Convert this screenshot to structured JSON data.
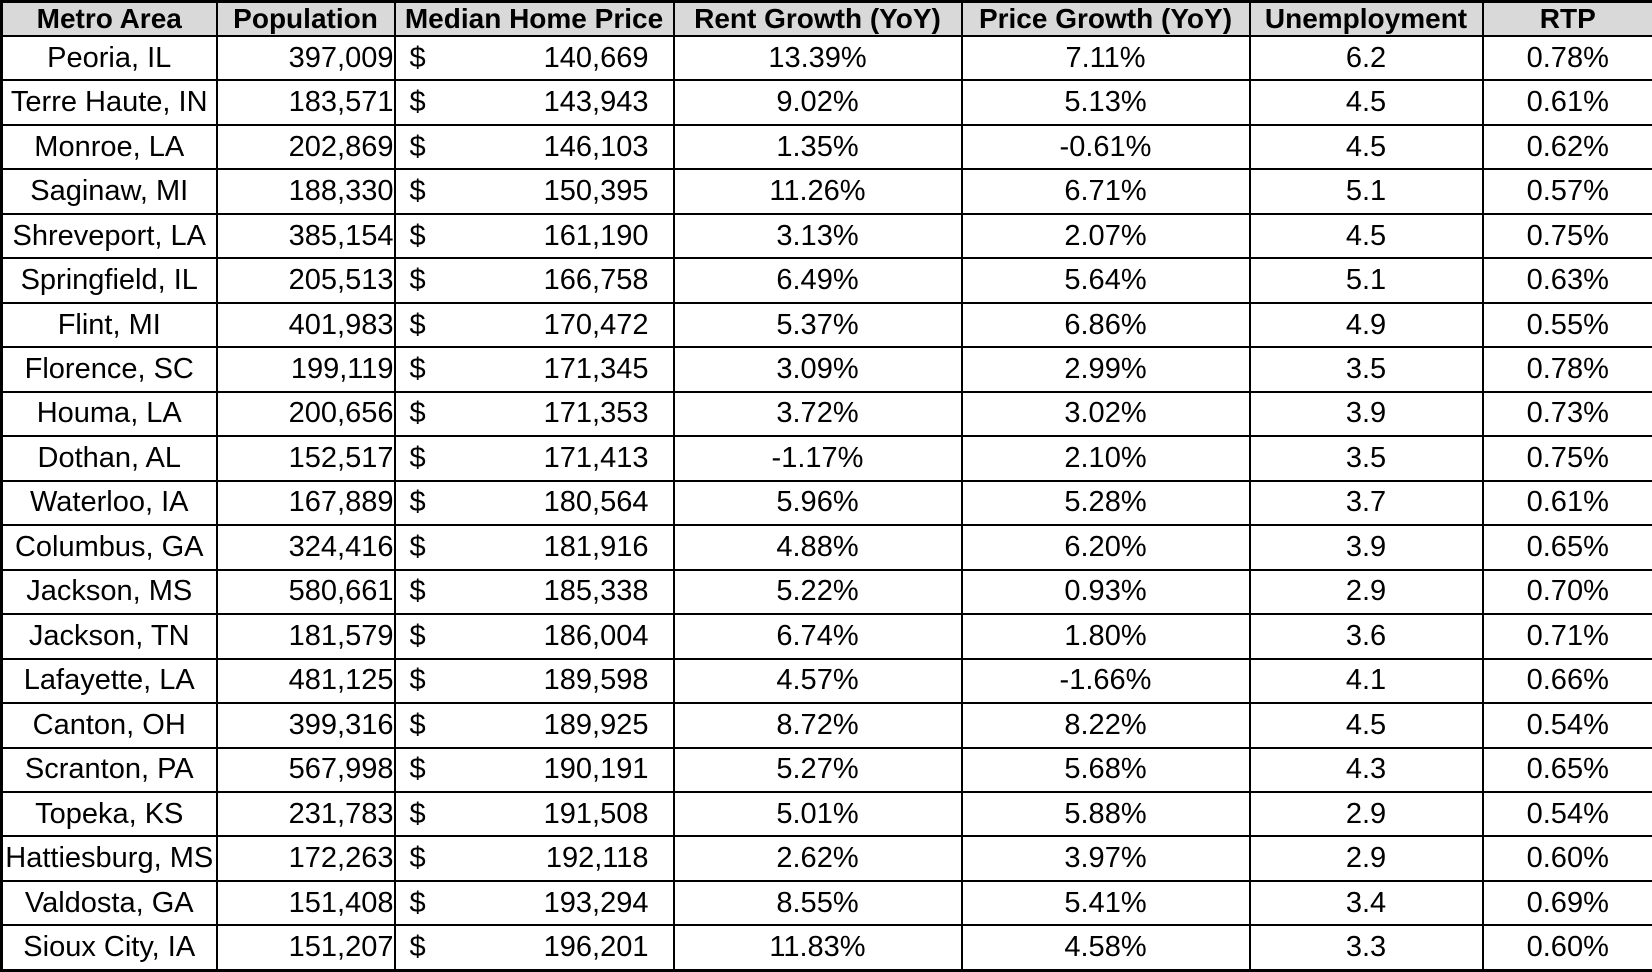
{
  "colors": {
    "header_bg": "#d9d9d9",
    "border": "#000000",
    "cell_bg": "#ffffff",
    "text": "#000000"
  },
  "chart_data": {
    "type": "table",
    "title": "",
    "columns": [
      {
        "key": "metro",
        "label": "Metro Area"
      },
      {
        "key": "population",
        "label": "Population"
      },
      {
        "key": "median_home_price",
        "label": "Median Home Price",
        "format": "accounting",
        "currency_symbol": "$"
      },
      {
        "key": "rent_growth",
        "label": "Rent Growth (YoY)"
      },
      {
        "key": "price_growth",
        "label": "Price Growth (YoY)"
      },
      {
        "key": "unemployment",
        "label": "Unemployment"
      },
      {
        "key": "rtp",
        "label": "RTP"
      }
    ],
    "rows": [
      [
        "Peoria, IL",
        "397,009",
        "140,669",
        "13.39%",
        "7.11%",
        "6.2",
        "0.78%"
      ],
      [
        "Terre Haute, IN",
        "183,571",
        "143,943",
        "9.02%",
        "5.13%",
        "4.5",
        "0.61%"
      ],
      [
        "Monroe, LA",
        "202,869",
        "146,103",
        "1.35%",
        "-0.61%",
        "4.5",
        "0.62%"
      ],
      [
        "Saginaw, MI",
        "188,330",
        "150,395",
        "11.26%",
        "6.71%",
        "5.1",
        "0.57%"
      ],
      [
        "Shreveport, LA",
        "385,154",
        "161,190",
        "3.13%",
        "2.07%",
        "4.5",
        "0.75%"
      ],
      [
        "Springfield, IL",
        "205,513",
        "166,758",
        "6.49%",
        "5.64%",
        "5.1",
        "0.63%"
      ],
      [
        "Flint, MI",
        "401,983",
        "170,472",
        "5.37%",
        "6.86%",
        "4.9",
        "0.55%"
      ],
      [
        "Florence, SC",
        "199,119",
        "171,345",
        "3.09%",
        "2.99%",
        "3.5",
        "0.78%"
      ],
      [
        "Houma, LA",
        "200,656",
        "171,353",
        "3.72%",
        "3.02%",
        "3.9",
        "0.73%"
      ],
      [
        "Dothan, AL",
        "152,517",
        "171,413",
        "-1.17%",
        "2.10%",
        "3.5",
        "0.75%"
      ],
      [
        "Waterloo, IA",
        "167,889",
        "180,564",
        "5.96%",
        "5.28%",
        "3.7",
        "0.61%"
      ],
      [
        "Columbus, GA",
        "324,416",
        "181,916",
        "4.88%",
        "6.20%",
        "3.9",
        "0.65%"
      ],
      [
        "Jackson, MS",
        "580,661",
        "185,338",
        "5.22%",
        "0.93%",
        "2.9",
        "0.70%"
      ],
      [
        "Jackson, TN",
        "181,579",
        "186,004",
        "6.74%",
        "1.80%",
        "3.6",
        "0.71%"
      ],
      [
        "Lafayette, LA",
        "481,125",
        "189,598",
        "4.57%",
        "-1.66%",
        "4.1",
        "0.66%"
      ],
      [
        "Canton, OH",
        "399,316",
        "189,925",
        "8.72%",
        "8.22%",
        "4.5",
        "0.54%"
      ],
      [
        "Scranton, PA",
        "567,998",
        "190,191",
        "5.27%",
        "5.68%",
        "4.3",
        "0.65%"
      ],
      [
        "Topeka, KS",
        "231,783",
        "191,508",
        "5.01%",
        "5.88%",
        "2.9",
        "0.54%"
      ],
      [
        "Hattiesburg, MS",
        "172,263",
        "192,118",
        "2.62%",
        "3.97%",
        "2.9",
        "0.60%"
      ],
      [
        "Valdosta, GA",
        "151,408",
        "193,294",
        "8.55%",
        "5.41%",
        "3.4",
        "0.69%"
      ],
      [
        "Sioux City, IA",
        "151,207",
        "196,201",
        "11.83%",
        "4.58%",
        "3.3",
        "0.60%"
      ]
    ]
  }
}
